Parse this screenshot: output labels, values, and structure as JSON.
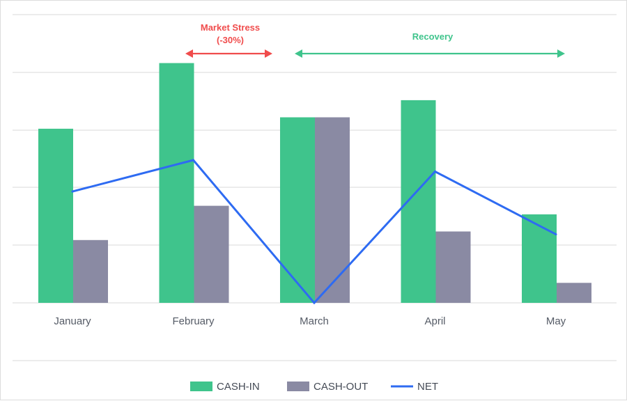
{
  "chart_data": {
    "type": "bar",
    "categories": [
      "January",
      "February",
      "March",
      "April",
      "May"
    ],
    "series": [
      {
        "name": "CASH-IN",
        "kind": "bar",
        "color": "#3fc48c",
        "values": [
          61,
          84,
          65,
          71,
          31
        ]
      },
      {
        "name": "CASH-OUT",
        "kind": "bar",
        "color": "#8a8aa3",
        "values": [
          22,
          34,
          65,
          25,
          7
        ]
      },
      {
        "name": "NET",
        "kind": "line",
        "color": "#2e6bf2",
        "values": [
          39,
          50,
          0,
          46,
          24
        ]
      }
    ],
    "ylim": [
      0,
      100
    ],
    "grid": true,
    "legend_position": "bottom",
    "annotations": [
      {
        "label_lines": [
          "Market Stress",
          "(-30%)"
        ],
        "color": "#f04c4c",
        "from": "February",
        "to": "March"
      },
      {
        "label_lines": [
          "Recovery"
        ],
        "color": "#3fc48c",
        "from": "March",
        "to": "May"
      }
    ]
  }
}
